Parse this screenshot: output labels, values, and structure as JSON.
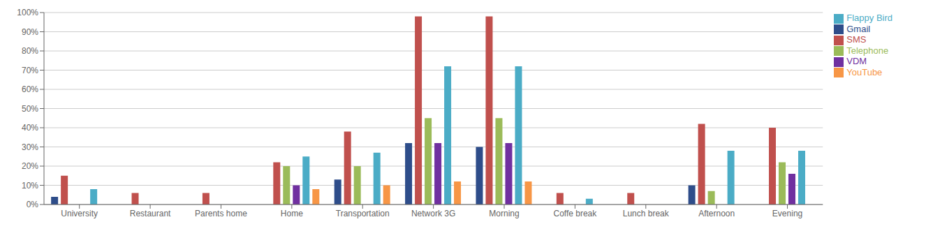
{
  "chart_data": {
    "type": "bar",
    "categories": [
      "University",
      "Restaurant",
      "Parents home",
      "Home",
      "Transportation",
      "Network 3G",
      "Morning",
      "Coffe break",
      "Lunch break",
      "Afternoon",
      "Evening"
    ],
    "series": [
      {
        "name": "Gmail",
        "color": "#2E4D8A",
        "values": [
          4,
          0,
          0,
          0,
          13,
          32,
          30,
          0,
          0,
          10,
          0
        ]
      },
      {
        "name": "SMS",
        "color": "#C0504D",
        "values": [
          15,
          6,
          6,
          22,
          38,
          98,
          98,
          6,
          6,
          42,
          40
        ]
      },
      {
        "name": "Telephone",
        "color": "#9BBB59",
        "values": [
          0,
          0,
          0,
          20,
          20,
          45,
          45,
          0,
          0,
          7,
          22
        ]
      },
      {
        "name": "VDM",
        "color": "#7030A0",
        "values": [
          0,
          0,
          0,
          10,
          0,
          32,
          32,
          0,
          0,
          0,
          16
        ]
      },
      {
        "name": "Flappy Bird",
        "color": "#4BACC6",
        "values": [
          8,
          0,
          0,
          25,
          27,
          72,
          72,
          3,
          0,
          28,
          28
        ]
      },
      {
        "name": "YouTube",
        "color": "#F79646",
        "values": [
          0,
          0,
          0,
          8,
          10,
          12,
          12,
          0,
          0,
          0,
          0
        ]
      }
    ],
    "ylim": [
      0,
      100
    ],
    "yticks": [
      {
        "value": 0,
        "label": "0%"
      },
      {
        "value": 10,
        "label": "10%"
      },
      {
        "value": 20,
        "label": "20%"
      },
      {
        "value": 30,
        "label": "30%"
      },
      {
        "value": 40,
        "label": "40%"
      },
      {
        "value": 50,
        "label": "50%"
      },
      {
        "value": 60,
        "label": "60%"
      },
      {
        "value": 70,
        "label": "70%"
      },
      {
        "value": 80,
        "label": "80%"
      },
      {
        "value": 90,
        "label": "90%"
      },
      {
        "value": 100,
        "label": "100%"
      }
    ],
    "grid": true,
    "legend": "right"
  }
}
